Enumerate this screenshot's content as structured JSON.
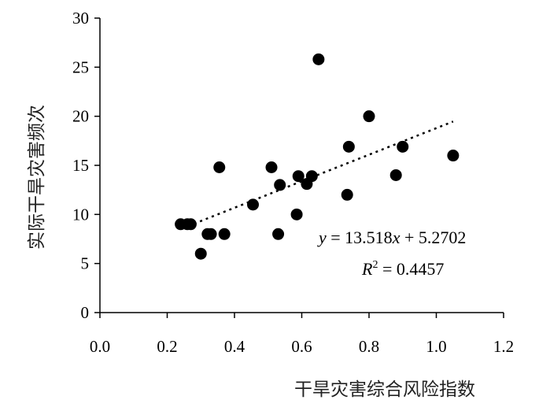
{
  "chart_data": {
    "type": "scatter",
    "xlabel": "干旱灾害综合风险指数",
    "ylabel": "实际干旱灾害频次",
    "xlim": [
      0.0,
      1.2
    ],
    "ylim": [
      0,
      30
    ],
    "x_ticks": [
      "0.0",
      "0.2",
      "0.4",
      "0.6",
      "0.8",
      "1.0",
      "1.2"
    ],
    "y_ticks": [
      "0",
      "5",
      "10",
      "15",
      "20",
      "25",
      "30"
    ],
    "grid": false,
    "legend": "none",
    "marker_color": "#000000",
    "series": [
      {
        "points": [
          {
            "x": 0.24,
            "y": 9
          },
          {
            "x": 0.26,
            "y": 9
          },
          {
            "x": 0.27,
            "y": 9
          },
          {
            "x": 0.3,
            "y": 6
          },
          {
            "x": 0.32,
            "y": 8
          },
          {
            "x": 0.33,
            "y": 8
          },
          {
            "x": 0.355,
            "y": 14.8
          },
          {
            "x": 0.37,
            "y": 8
          },
          {
            "x": 0.455,
            "y": 11
          },
          {
            "x": 0.51,
            "y": 14.8
          },
          {
            "x": 0.53,
            "y": 8
          },
          {
            "x": 0.535,
            "y": 13
          },
          {
            "x": 0.585,
            "y": 10
          },
          {
            "x": 0.59,
            "y": 13.9
          },
          {
            "x": 0.615,
            "y": 13.1
          },
          {
            "x": 0.63,
            "y": 13.9
          },
          {
            "x": 0.65,
            "y": 25.8
          },
          {
            "x": 0.735,
            "y": 12
          },
          {
            "x": 0.74,
            "y": 16.9
          },
          {
            "x": 0.8,
            "y": 20
          },
          {
            "x": 0.88,
            "y": 14
          },
          {
            "x": 0.9,
            "y": 16.9
          },
          {
            "x": 1.05,
            "y": 16
          }
        ]
      }
    ],
    "trendline": {
      "style": "dotted",
      "slope": 13.518,
      "intercept": 5.2702,
      "x_range": [
        0.28,
        1.05
      ],
      "equation_label": "y = 13.518x + 5.2702",
      "r2_label": "R 2 = 0.4457"
    }
  }
}
